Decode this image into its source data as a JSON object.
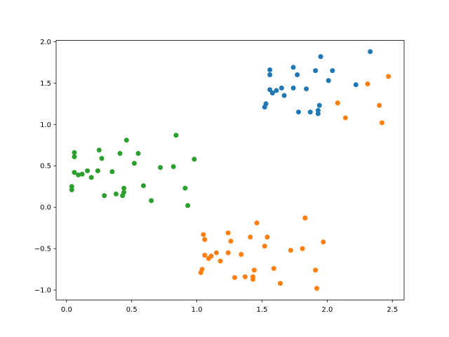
{
  "chart_data": {
    "type": "scatter",
    "xlim": [
      -0.08,
      2.59
    ],
    "ylim": [
      -1.12,
      2.015
    ],
    "xticks": [
      {
        "value": 0,
        "label": "0.0"
      },
      0.5,
      {
        "value": 1,
        "label": "1.0"
      },
      1.5,
      {
        "value": 2,
        "label": "2.0"
      },
      2.5
    ],
    "yticks": [
      {
        "value": -1,
        "label": "−1.0"
      },
      {
        "value": -0.5,
        "label": "−0.5"
      },
      {
        "value": 0,
        "label": "0.0"
      },
      0.5,
      {
        "value": 1,
        "label": "1.0"
      },
      1.5,
      {
        "value": 2,
        "label": "2.0"
      }
    ],
    "series": [
      {
        "color": "#1f77b4",
        "x": [
          2.33,
          1.95,
          1.74,
          1.56,
          1.56,
          1.77,
          1.91,
          2.04,
          2.01,
          2.22,
          1.56,
          1.58,
          1.61,
          1.65,
          1.74,
          1.84,
          1.67,
          1.53,
          1.52,
          1.78,
          1.87,
          1.94,
          1.93,
          1.93
        ],
        "values": [
          1.88,
          1.82,
          1.69,
          1.66,
          1.6,
          1.6,
          1.65,
          1.65,
          1.53,
          1.48,
          1.42,
          1.38,
          1.41,
          1.44,
          1.44,
          1.43,
          1.35,
          1.25,
          1.21,
          1.15,
          1.15,
          1.23,
          1.17,
          1.13
        ]
      },
      {
        "color": "#ff7f0e",
        "x": [
          2.47,
          2.31,
          2.08,
          2.4,
          2.14,
          2.42,
          1.46,
          1.83,
          1.05,
          1.06,
          1.24,
          1.41,
          1.54,
          1.26,
          1.52,
          1.97,
          1.81,
          1.72,
          1.06,
          1.09,
          1.11,
          1.15,
          1.24,
          1.34,
          1.18,
          1.04,
          1.03,
          1.59,
          1.44,
          1.91,
          1.29,
          1.37,
          1.43,
          1.43,
          1.64,
          1.92
        ],
        "values": [
          1.58,
          1.49,
          1.26,
          1.23,
          1.08,
          1.02,
          -0.19,
          -0.13,
          -0.33,
          -0.39,
          -0.31,
          -0.36,
          -0.36,
          -0.41,
          -0.47,
          -0.42,
          -0.5,
          -0.52,
          -0.58,
          -0.62,
          -0.59,
          -0.55,
          -0.55,
          -0.57,
          -0.65,
          -0.75,
          -0.79,
          -0.74,
          -0.76,
          -0.76,
          -0.85,
          -0.84,
          -0.84,
          -0.87,
          -0.92,
          -0.98
        ]
      },
      {
        "color": "#2ca02c",
        "x": [
          0.84,
          0.46,
          0.06,
          0.06,
          0.25,
          0.41,
          0.55,
          0.27,
          0.98,
          0.52,
          0.72,
          0.82,
          0.06,
          0.09,
          0.12,
          0.16,
          0.24,
          0.35,
          0.19,
          0.59,
          0.91,
          0.44,
          0.04,
          0.04,
          0.29,
          0.38,
          0.44,
          0.43,
          0.65,
          0.93
        ],
        "values": [
          0.87,
          0.81,
          0.66,
          0.61,
          0.69,
          0.65,
          0.65,
          0.59,
          0.58,
          0.53,
          0.48,
          0.49,
          0.42,
          0.39,
          0.4,
          0.44,
          0.44,
          0.43,
          0.36,
          0.26,
          0.23,
          0.23,
          0.25,
          0.21,
          0.14,
          0.16,
          0.18,
          0.14,
          0.08,
          0.02
        ]
      }
    ]
  }
}
